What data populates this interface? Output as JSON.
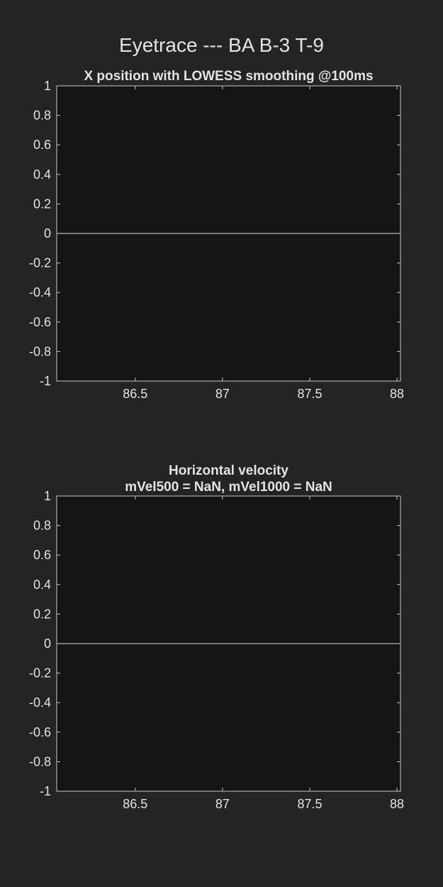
{
  "figure": {
    "title": "Eyetrace --- BA B-3 T-9"
  },
  "colors": {
    "background": "#242424",
    "axes_background": "#141414",
    "axis_line": "#c8c8c8",
    "text": "#e3e3e3",
    "trace": "#9a9a9a"
  },
  "chart_data": [
    {
      "type": "line",
      "title": "X position with LOWESS smoothing @100ms",
      "xlim": [
        86.05,
        88.02
      ],
      "ylim": [
        -1,
        1
      ],
      "xticks": [
        86.5,
        87,
        87.5,
        88
      ],
      "xtick_labels": [
        "86.5",
        "87",
        "87.5",
        "88"
      ],
      "yticks": [
        1,
        0.8,
        0.6,
        0.4,
        0.2,
        0,
        -0.2,
        -0.4,
        -0.6,
        -0.8,
        -1
      ],
      "ytick_labels": [
        "1",
        "0.8",
        "0.6",
        "0.4",
        "0.2",
        "0",
        "-0.2",
        "-0.4",
        "-0.6",
        "-0.8",
        "-1"
      ],
      "series": [
        {
          "x": [
            86.05,
            88.02
          ],
          "y": [
            0,
            0
          ]
        }
      ]
    },
    {
      "type": "line",
      "title": "Horizontal velocity",
      "subtitle": "mVel500 = NaN, mVel1000 = NaN",
      "xlim": [
        86.05,
        88.02
      ],
      "ylim": [
        -1,
        1
      ],
      "xticks": [
        86.5,
        87,
        87.5,
        88
      ],
      "xtick_labels": [
        "86.5",
        "87",
        "87.5",
        "88"
      ],
      "yticks": [
        1,
        0.8,
        0.6,
        0.4,
        0.2,
        0,
        -0.2,
        -0.4,
        -0.6,
        -0.8,
        -1
      ],
      "ytick_labels": [
        "1",
        "0.8",
        "0.6",
        "0.4",
        "0.2",
        "0",
        "-0.2",
        "-0.4",
        "-0.6",
        "-0.8",
        "-1"
      ],
      "series": [
        {
          "x": [
            86.05,
            88.02
          ],
          "y": [
            0,
            0
          ]
        }
      ]
    }
  ]
}
